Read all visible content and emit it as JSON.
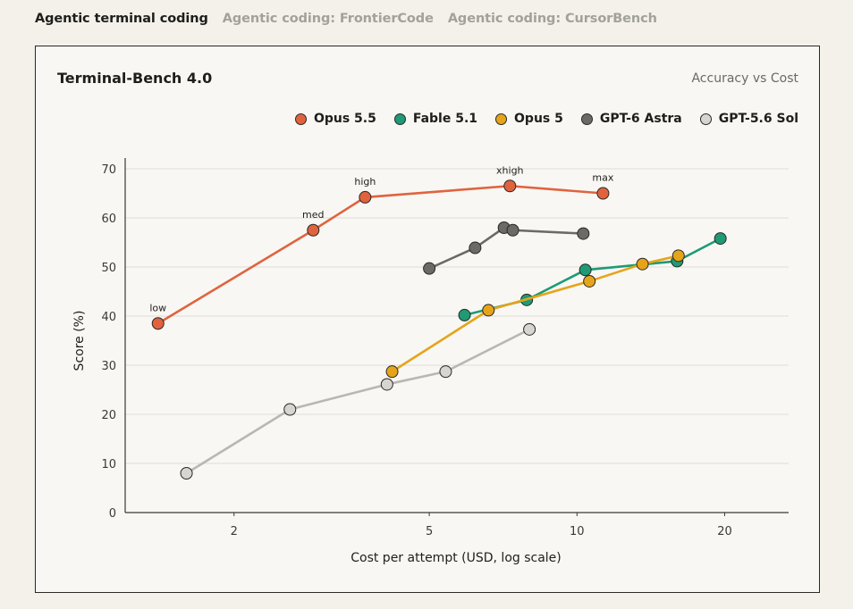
{
  "tabs": [
    {
      "label": "Agentic terminal coding",
      "active": true
    },
    {
      "label": "Agentic coding: FrontierCode",
      "active": false
    },
    {
      "label": "Agentic coding: CursorBench",
      "active": false
    }
  ],
  "card": {
    "title": "Terminal-Bench 4.0",
    "subtitle": "Accuracy vs Cost"
  },
  "chart_data": {
    "type": "line",
    "title": "Terminal-Bench 4.0",
    "subtitle": "Accuracy vs Cost",
    "xlabel": "Cost per attempt (USD, log scale)",
    "ylabel": "Score (%)",
    "xscale": "log",
    "xlim": [
      1.2,
      27
    ],
    "ylim": [
      0,
      70
    ],
    "xticks": [
      2,
      5,
      10,
      20
    ],
    "yticks": [
      0,
      10,
      20,
      30,
      40,
      50,
      60,
      70
    ],
    "grid": "horizontal",
    "legend": "top-right",
    "series": [
      {
        "name": "Opus 5.5",
        "color": "#e0633e",
        "points": [
          {
            "x": 1.4,
            "y": 38.5,
            "label": "low"
          },
          {
            "x": 2.9,
            "y": 57.5,
            "label": "med"
          },
          {
            "x": 3.7,
            "y": 64.2,
            "label": "high"
          },
          {
            "x": 7.3,
            "y": 66.5,
            "label": "xhigh"
          },
          {
            "x": 11.3,
            "y": 65.0,
            "label": "max"
          }
        ]
      },
      {
        "name": "Fable 5.1",
        "color": "#1f9a74",
        "points": [
          {
            "x": 5.9,
            "y": 40.2
          },
          {
            "x": 7.9,
            "y": 43.3
          },
          {
            "x": 10.4,
            "y": 49.4
          },
          {
            "x": 16.0,
            "y": 51.2
          },
          {
            "x": 19.6,
            "y": 55.8
          }
        ]
      },
      {
        "name": "Opus 5",
        "color": "#e5a41a",
        "points": [
          {
            "x": 4.2,
            "y": 28.7
          },
          {
            "x": 6.6,
            "y": 41.2
          },
          {
            "x": 10.6,
            "y": 47.1
          },
          {
            "x": 13.6,
            "y": 50.6
          },
          {
            "x": 16.1,
            "y": 52.3
          }
        ]
      },
      {
        "name": "GPT-6 Astra",
        "color": "#6a6a67",
        "points": [
          {
            "x": 5.0,
            "y": 49.7
          },
          {
            "x": 6.2,
            "y": 53.9
          },
          {
            "x": 7.1,
            "y": 58.0
          },
          {
            "x": 7.4,
            "y": 57.5
          },
          {
            "x": 10.3,
            "y": 56.8
          }
        ]
      },
      {
        "name": "GPT-5.6 Sol",
        "color": "#d7d5cf",
        "line_color": "#b9b7b1",
        "points": [
          {
            "x": 1.6,
            "y": 8.0
          },
          {
            "x": 2.6,
            "y": 21.0
          },
          {
            "x": 4.1,
            "y": 26.1
          },
          {
            "x": 5.4,
            "y": 28.7
          },
          {
            "x": 8.0,
            "y": 37.3
          }
        ]
      }
    ]
  }
}
